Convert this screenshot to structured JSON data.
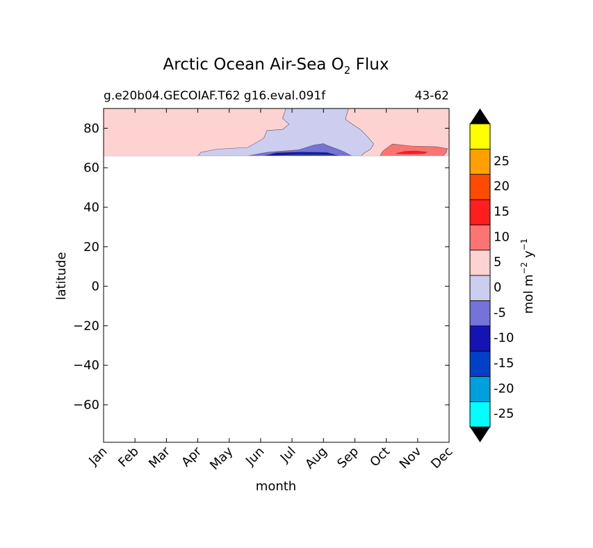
{
  "chart_data": {
    "type": "contour",
    "title_main": "Arctic Ocean Air-Sea O",
    "title_sub": "2",
    "title_end": " Flux",
    "subtitle_left": "g.e20b04.GECOIAF.T62 g16.eval.091f",
    "subtitle_right": "43-62",
    "xlabel": "month",
    "ylabel": "latitude",
    "x_ticks": [
      "Jan",
      "Feb",
      "Mar",
      "Apr",
      "May",
      "Jun",
      "Jul",
      "Aug",
      "Sep",
      "Oct",
      "Nov",
      "Dec"
    ],
    "y_ticks": [
      80,
      60,
      40,
      20,
      0,
      -20,
      -40,
      -60
    ],
    "y_tick_labels": [
      "80",
      "60",
      "40",
      "20",
      "0",
      "−20",
      "−40",
      "−60"
    ],
    "ylim": [
      -79,
      90
    ],
    "xlim": [
      0,
      11
    ],
    "data_lat_min": 66,
    "colorbar": {
      "label_main": "mol m",
      "label_exp1": "−2",
      "label_mid": " y",
      "label_exp2": "−1",
      "levels": [
        "-25",
        "-20",
        "-15",
        "-10",
        "-5",
        "0",
        "5",
        "10",
        "15",
        "20",
        "25"
      ],
      "colors": [
        "#00ffff",
        "#00a0e0",
        "#0040c8",
        "#1414b4",
        "#7373d8",
        "#cdcdf0",
        "#ffd2d2",
        "#ff7373",
        "#ff1e1e",
        "#ff4b00",
        "#ffa000",
        "#ffff00"
      ],
      "extend_low_color": "#000000",
      "extend_high_color": "#000000"
    },
    "contours": [
      {
        "level": "-5 to 0",
        "color": "#cdcdf0",
        "outline": [
          [
            3.0,
            66
          ],
          [
            3.1,
            67.8
          ],
          [
            3.6,
            69.4
          ],
          [
            4.6,
            70.3
          ],
          [
            5.1,
            75
          ],
          [
            5.2,
            78.8
          ],
          [
            5.7,
            79.4
          ],
          [
            5.9,
            82
          ],
          [
            5.7,
            85
          ],
          [
            5.8,
            90
          ],
          [
            7.8,
            90
          ],
          [
            7.7,
            84.5
          ],
          [
            8.2,
            79
          ],
          [
            8.4,
            75.8
          ],
          [
            8.6,
            72
          ],
          [
            8.5,
            69.4
          ],
          [
            8.3,
            67.5
          ],
          [
            8.2,
            66
          ]
        ]
      },
      {
        "level": "-10 to -5",
        "color": "#7373d8",
        "outline": [
          [
            4.6,
            66
          ],
          [
            5.2,
            67.8
          ],
          [
            6.2,
            69
          ],
          [
            6.7,
            71.5
          ],
          [
            7.0,
            72.2
          ],
          [
            7.1,
            71.4
          ],
          [
            7.6,
            68.5
          ],
          [
            7.9,
            66
          ]
        ]
      },
      {
        "level": "-15 to -10",
        "color": "#1414b4",
        "outline": [
          [
            5.1,
            66
          ],
          [
            5.5,
            67.6
          ],
          [
            6.3,
            68
          ],
          [
            7.1,
            67.8
          ],
          [
            7.5,
            66
          ]
        ]
      },
      {
        "level": "-20 to -15",
        "color": "#0040c8",
        "outline": [
          [
            5.5,
            66
          ],
          [
            6.2,
            66.8
          ],
          [
            7.1,
            66.7
          ],
          [
            7.4,
            66
          ]
        ]
      },
      {
        "level": "5 to 10",
        "color": "#ff7373",
        "outline": [
          [
            8.8,
            66
          ],
          [
            8.9,
            68.6
          ],
          [
            9.2,
            72
          ],
          [
            9.8,
            71
          ],
          [
            10.6,
            70.6
          ],
          [
            10.95,
            69.7
          ],
          [
            10.9,
            67.5
          ],
          [
            10.8,
            66
          ]
        ]
      },
      {
        "level": "10 to 15",
        "color": "#ff1e1e",
        "outline": [
          [
            9.3,
            67.2
          ],
          [
            9.6,
            68.3
          ],
          [
            9.95,
            68.5
          ],
          [
            10.3,
            67.9
          ],
          [
            10.2,
            67.2
          ],
          [
            9.7,
            67
          ]
        ]
      }
    ],
    "background_band": {
      "level": "0 to 5",
      "color": "#ffd2d2"
    }
  }
}
